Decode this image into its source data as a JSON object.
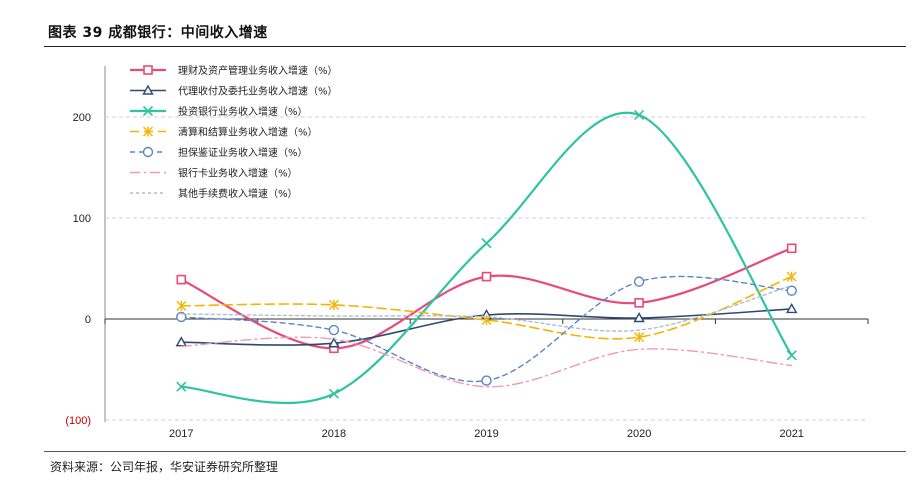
{
  "title": "图表 39 成都银行：中间收入增速",
  "source": "资料来源：公司年报，华安证券研究所整理",
  "chart_data": {
    "type": "line",
    "categories": [
      "2017",
      "2018",
      "2019",
      "2020",
      "2021"
    ],
    "ylim": [
      -100,
      250
    ],
    "yticks": [
      {
        "value": 200,
        "label": "200"
      },
      {
        "value": 100,
        "label": "100"
      },
      {
        "value": 0,
        "label": "0"
      },
      {
        "value": -100,
        "label": "(100)"
      }
    ],
    "grid": true,
    "legend_position": "top-left",
    "series": [
      {
        "name": "理财及资产管理业务收入增速（%）",
        "values": [
          39,
          -29,
          42,
          16,
          70
        ],
        "color": "#e84a7a",
        "marker": "square",
        "dash": "",
        "width": 2.2
      },
      {
        "name": "代理收付及委托业务收入增速（%）",
        "values": [
          -23,
          -24,
          4,
          1,
          10
        ],
        "color": "#2e4a72",
        "marker": "triangle",
        "dash": "",
        "width": 1.6
      },
      {
        "name": "投资银行业务收入增速（%）",
        "values": [
          -67,
          -74,
          75,
          202,
          -36
        ],
        "color": "#2ec4a0",
        "marker": "x",
        "dash": "",
        "width": 2.2
      },
      {
        "name": "清算和结算业务收入增速（%）",
        "values": [
          13,
          14,
          -1,
          -18,
          42
        ],
        "color": "#f4b400",
        "marker": "star",
        "dash": "9,5",
        "width": 1.6
      },
      {
        "name": "担保鉴证业务收入增速（%）",
        "values": [
          2,
          -11,
          -61,
          37,
          28
        ],
        "color": "#5b85c7",
        "marker": "circle",
        "dash": "5,4",
        "width": 1.4
      },
      {
        "name": "银行卡业务收入增速（%）",
        "values": [
          -27,
          -20,
          -67,
          -30,
          -46
        ],
        "color": "#f09ab4",
        "marker": "none",
        "dash": "10,4,2,4",
        "width": 1.4
      },
      {
        "name": "其他手续费收入增速（%）",
        "values": [
          5,
          3,
          2,
          -11,
          33
        ],
        "color": "#aebdd4",
        "marker": "none",
        "dash": "3,3",
        "width": 1.4
      }
    ]
  }
}
